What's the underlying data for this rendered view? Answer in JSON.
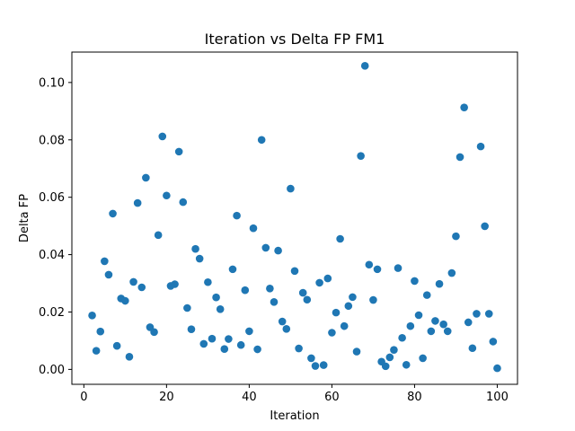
{
  "chart_data": {
    "type": "scatter",
    "title": "Iteration vs Delta FP FM1",
    "xlabel": "Iteration",
    "ylabel": "Delta FP",
    "xlim": [
      -2.9,
      104.9
    ],
    "ylim": [
      -0.0052,
      0.1106
    ],
    "xticks": [
      0,
      20,
      40,
      60,
      80,
      100
    ],
    "xtick_labels": [
      "0",
      "20",
      "40",
      "60",
      "80",
      "100"
    ],
    "yticks": [
      0.0,
      0.02,
      0.04,
      0.06,
      0.08,
      0.1
    ],
    "ytick_labels": [
      "0.00",
      "0.02",
      "0.04",
      "0.06",
      "0.08",
      "0.10"
    ],
    "grid": false,
    "marker_color": "#1f77b4",
    "points": [
      {
        "x": 2,
        "y": 0.0188
      },
      {
        "x": 3,
        "y": 0.0065
      },
      {
        "x": 4,
        "y": 0.0132
      },
      {
        "x": 5,
        "y": 0.0377
      },
      {
        "x": 6,
        "y": 0.033
      },
      {
        "x": 7,
        "y": 0.0543
      },
      {
        "x": 8,
        "y": 0.0082
      },
      {
        "x": 9,
        "y": 0.0247
      },
      {
        "x": 10,
        "y": 0.0239
      },
      {
        "x": 11,
        "y": 0.0044
      },
      {
        "x": 12,
        "y": 0.0305
      },
      {
        "x": 13,
        "y": 0.058
      },
      {
        "x": 14,
        "y": 0.0286
      },
      {
        "x": 15,
        "y": 0.0668
      },
      {
        "x": 16,
        "y": 0.0147
      },
      {
        "x": 17,
        "y": 0.013
      },
      {
        "x": 18,
        "y": 0.0468
      },
      {
        "x": 19,
        "y": 0.0812
      },
      {
        "x": 20,
        "y": 0.0606
      },
      {
        "x": 21,
        "y": 0.0291
      },
      {
        "x": 22,
        "y": 0.0297
      },
      {
        "x": 23,
        "y": 0.0759
      },
      {
        "x": 24,
        "y": 0.0583
      },
      {
        "x": 25,
        "y": 0.0214
      },
      {
        "x": 26,
        "y": 0.014
      },
      {
        "x": 27,
        "y": 0.042
      },
      {
        "x": 28,
        "y": 0.0386
      },
      {
        "x": 29,
        "y": 0.0089
      },
      {
        "x": 30,
        "y": 0.0304
      },
      {
        "x": 31,
        "y": 0.0107
      },
      {
        "x": 32,
        "y": 0.0251
      },
      {
        "x": 33,
        "y": 0.021
      },
      {
        "x": 34,
        "y": 0.0071
      },
      {
        "x": 35,
        "y": 0.0106
      },
      {
        "x": 36,
        "y": 0.0349
      },
      {
        "x": 37,
        "y": 0.0536
      },
      {
        "x": 38,
        "y": 0.0085
      },
      {
        "x": 39,
        "y": 0.0276
      },
      {
        "x": 40,
        "y": 0.0133
      },
      {
        "x": 41,
        "y": 0.0492
      },
      {
        "x": 42,
        "y": 0.007
      },
      {
        "x": 43,
        "y": 0.08
      },
      {
        "x": 44,
        "y": 0.0424
      },
      {
        "x": 45,
        "y": 0.0282
      },
      {
        "x": 46,
        "y": 0.0235
      },
      {
        "x": 47,
        "y": 0.0414
      },
      {
        "x": 48,
        "y": 0.0167
      },
      {
        "x": 49,
        "y": 0.0141
      },
      {
        "x": 50,
        "y": 0.063
      },
      {
        "x": 51,
        "y": 0.0343
      },
      {
        "x": 52,
        "y": 0.0073
      },
      {
        "x": 53,
        "y": 0.0267
      },
      {
        "x": 54,
        "y": 0.0243
      },
      {
        "x": 55,
        "y": 0.0039
      },
      {
        "x": 56,
        "y": 0.0012
      },
      {
        "x": 57,
        "y": 0.0302
      },
      {
        "x": 58,
        "y": 0.0015
      },
      {
        "x": 59,
        "y": 0.0317
      },
      {
        "x": 60,
        "y": 0.0128
      },
      {
        "x": 61,
        "y": 0.0198
      },
      {
        "x": 62,
        "y": 0.0455
      },
      {
        "x": 63,
        "y": 0.0151
      },
      {
        "x": 64,
        "y": 0.0221
      },
      {
        "x": 65,
        "y": 0.0252
      },
      {
        "x": 66,
        "y": 0.0062
      },
      {
        "x": 67,
        "y": 0.0744
      },
      {
        "x": 68,
        "y": 0.1058
      },
      {
        "x": 69,
        "y": 0.0365
      },
      {
        "x": 70,
        "y": 0.0242
      },
      {
        "x": 71,
        "y": 0.0349
      },
      {
        "x": 72,
        "y": 0.0027
      },
      {
        "x": 73,
        "y": 0.0011
      },
      {
        "x": 74,
        "y": 0.0042
      },
      {
        "x": 75,
        "y": 0.0068
      },
      {
        "x": 76,
        "y": 0.0353
      },
      {
        "x": 77,
        "y": 0.011
      },
      {
        "x": 78,
        "y": 0.0016
      },
      {
        "x": 79,
        "y": 0.0151
      },
      {
        "x": 80,
        "y": 0.0308
      },
      {
        "x": 81,
        "y": 0.0189
      },
      {
        "x": 82,
        "y": 0.0039
      },
      {
        "x": 83,
        "y": 0.0259
      },
      {
        "x": 84,
        "y": 0.0133
      },
      {
        "x": 85,
        "y": 0.0169
      },
      {
        "x": 86,
        "y": 0.0298
      },
      {
        "x": 87,
        "y": 0.0157
      },
      {
        "x": 88,
        "y": 0.0133
      },
      {
        "x": 89,
        "y": 0.0336
      },
      {
        "x": 90,
        "y": 0.0464
      },
      {
        "x": 91,
        "y": 0.074
      },
      {
        "x": 92,
        "y": 0.0913
      },
      {
        "x": 93,
        "y": 0.0164
      },
      {
        "x": 94,
        "y": 0.0074
      },
      {
        "x": 95,
        "y": 0.0194
      },
      {
        "x": 96,
        "y": 0.0777
      },
      {
        "x": 97,
        "y": 0.0499
      },
      {
        "x": 98,
        "y": 0.0194
      },
      {
        "x": 99,
        "y": 0.0097
      },
      {
        "x": 100,
        "y": 0.0004
      }
    ]
  }
}
